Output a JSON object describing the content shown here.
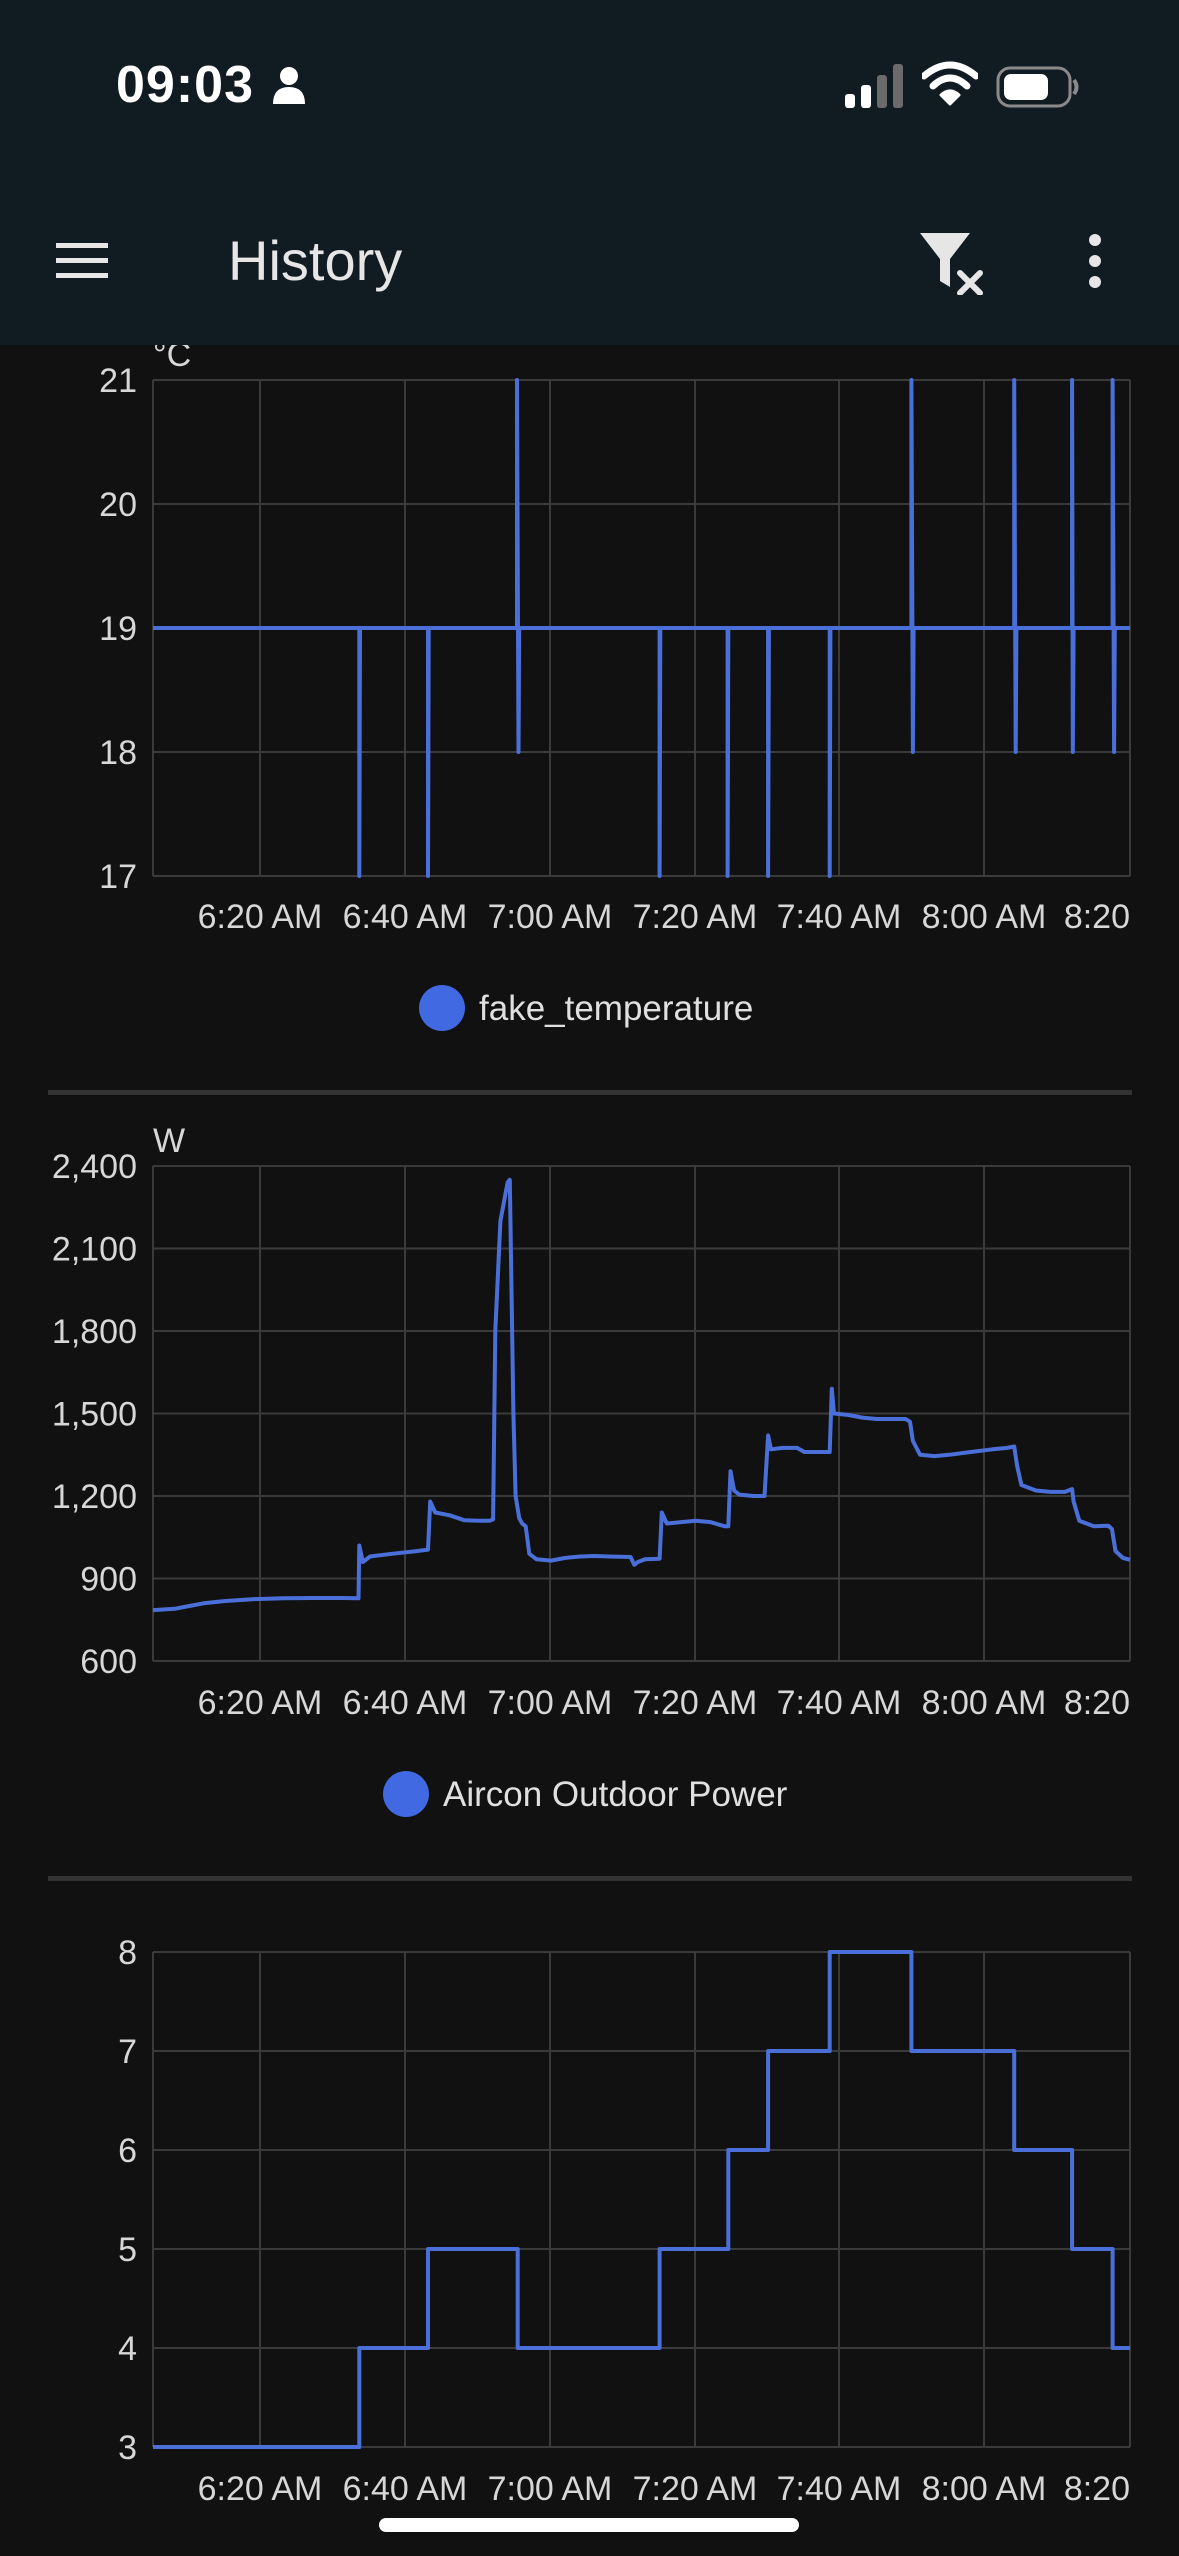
{
  "status_bar": {
    "time": "09:03",
    "icons": [
      "person-icon",
      "cellular-signal-icon",
      "wifi-icon",
      "battery-icon"
    ]
  },
  "app_bar": {
    "title": "History",
    "menu_icon": "hamburger-menu-icon",
    "filter_icon": "clear-filter-icon",
    "more_icon": "more-vert-icon"
  },
  "colors": {
    "line": "#4a6fd8",
    "legend_dot": "#4169e1",
    "grid": "#3a3a3a",
    "background": "#111111",
    "app_bar": "#111b22"
  },
  "chart_data": [
    {
      "type": "line",
      "step": true,
      "unit": "°C",
      "x_ticks": [
        "6:20 AM",
        "6:40 AM",
        "7:00 AM",
        "7:20 AM",
        "7:40 AM",
        "8:00 AM",
        "8:20"
      ],
      "y_ticks": [
        "17",
        "18",
        "19",
        "20",
        "21"
      ],
      "ylim": [
        17,
        21
      ],
      "xlim_min": [
        0,
        135
      ],
      "grid": true,
      "legend": "bottom-center",
      "series": [
        {
          "name": "fake_temperature",
          "points": [
            [
              0,
              19
            ],
            [
              28.5,
              19
            ],
            [
              28.5,
              17
            ],
            [
              28.6,
              19
            ],
            [
              38,
              19
            ],
            [
              38,
              17
            ],
            [
              38.1,
              19
            ],
            [
              50.3,
              19
            ],
            [
              50.3,
              21
            ],
            [
              50.5,
              18
            ],
            [
              50.6,
              19
            ],
            [
              70,
              19
            ],
            [
              70,
              17
            ],
            [
              70.1,
              19
            ],
            [
              79.4,
              19
            ],
            [
              79.4,
              17
            ],
            [
              79.5,
              19
            ],
            [
              85,
              19
            ],
            [
              85,
              17
            ],
            [
              85.1,
              19
            ],
            [
              93.5,
              19
            ],
            [
              93.5,
              17
            ],
            [
              93.6,
              19
            ],
            [
              104.8,
              19
            ],
            [
              104.8,
              21
            ],
            [
              105,
              18
            ],
            [
              105.1,
              19
            ],
            [
              119,
              19
            ],
            [
              119,
              21
            ],
            [
              119.2,
              18
            ],
            [
              119.3,
              19
            ],
            [
              127,
              19
            ],
            [
              127,
              21
            ],
            [
              127.1,
              18
            ],
            [
              127.2,
              19
            ],
            [
              132.6,
              19
            ],
            [
              132.6,
              21
            ],
            [
              132.8,
              18
            ],
            [
              132.9,
              19
            ],
            [
              135,
              19
            ]
          ]
        }
      ]
    },
    {
      "type": "line",
      "unit": "W",
      "x_ticks": [
        "6:20 AM",
        "6:40 AM",
        "7:00 AM",
        "7:20 AM",
        "7:40 AM",
        "8:00 AM",
        "8:20"
      ],
      "y_ticks": [
        "600",
        "900",
        "1,200",
        "1,500",
        "1,800",
        "2,100",
        "2,400"
      ],
      "ylim": [
        600,
        2400
      ],
      "xlim_min": [
        0,
        135
      ],
      "grid": true,
      "legend": "bottom-center",
      "series": [
        {
          "name": "Aircon Outdoor Power",
          "points": [
            [
              0,
              785
            ],
            [
              3,
              790
            ],
            [
              5,
              800
            ],
            [
              7,
              810
            ],
            [
              10,
              818
            ],
            [
              14,
              825
            ],
            [
              18,
              828
            ],
            [
              22,
              829
            ],
            [
              26,
              829
            ],
            [
              28.4,
              828
            ],
            [
              28.5,
              1020
            ],
            [
              29,
              960
            ],
            [
              30,
              980
            ],
            [
              33,
              990
            ],
            [
              36,
              998
            ],
            [
              38,
              1005
            ],
            [
              38.3,
              1180
            ],
            [
              39,
              1140
            ],
            [
              41,
              1130
            ],
            [
              43,
              1112
            ],
            [
              45,
              1110
            ],
            [
              46.5,
              1110
            ],
            [
              47,
              1115
            ],
            [
              47.3,
              1800
            ],
            [
              48,
              2200
            ],
            [
              49,
              2340
            ],
            [
              49.3,
              2350
            ],
            [
              49.8,
              1500
            ],
            [
              50.1,
              1200
            ],
            [
              50.6,
              1120
            ],
            [
              51,
              1100
            ],
            [
              51.5,
              1090
            ],
            [
              52,
              990
            ],
            [
              53,
              970
            ],
            [
              55,
              965
            ],
            [
              57,
              975
            ],
            [
              59,
              980
            ],
            [
              61,
              982
            ],
            [
              63,
              980
            ],
            [
              66,
              978
            ],
            [
              66.5,
              950
            ],
            [
              67,
              960
            ],
            [
              68,
              970
            ],
            [
              70,
              972
            ],
            [
              70.3,
              1140
            ],
            [
              71,
              1100
            ],
            [
              73,
              1105
            ],
            [
              75,
              1110
            ],
            [
              77,
              1105
            ],
            [
              79,
              1090
            ],
            [
              79.5,
              1090
            ],
            [
              79.8,
              1290
            ],
            [
              80.3,
              1220
            ],
            [
              81,
              1205
            ],
            [
              83,
              1200
            ],
            [
              84.5,
              1200
            ],
            [
              85,
              1420
            ],
            [
              85.4,
              1370
            ],
            [
              87,
              1375
            ],
            [
              89,
              1375
            ],
            [
              90,
              1360
            ],
            [
              92,
              1360
            ],
            [
              93.5,
              1360
            ],
            [
              93.8,
              1590
            ],
            [
              94.1,
              1500
            ],
            [
              96,
              1495
            ],
            [
              98,
              1485
            ],
            [
              100,
              1480
            ],
            [
              102,
              1480
            ],
            [
              104,
              1480
            ],
            [
              104.6,
              1470
            ],
            [
              105,
              1400
            ],
            [
              106,
              1350
            ],
            [
              108,
              1345
            ],
            [
              110,
              1350
            ],
            [
              113,
              1360
            ],
            [
              116,
              1370
            ],
            [
              118,
              1375
            ],
            [
              119,
              1380
            ],
            [
              119.4,
              1310
            ],
            [
              120,
              1240
            ],
            [
              122,
              1220
            ],
            [
              124,
              1215
            ],
            [
              126,
              1215
            ],
            [
              127,
              1225
            ],
            [
              127.2,
              1180
            ],
            [
              128,
              1110
            ],
            [
              130,
              1090
            ],
            [
              132,
              1092
            ],
            [
              132.5,
              1080
            ],
            [
              133,
              1000
            ],
            [
              134,
              975
            ],
            [
              135,
              968
            ]
          ]
        }
      ]
    },
    {
      "type": "line",
      "step": true,
      "x_ticks": [
        "6:20 AM",
        "6:40 AM",
        "7:00 AM",
        "7:20 AM",
        "7:40 AM",
        "8:00 AM",
        "8:20"
      ],
      "y_ticks": [
        "3",
        "4",
        "5",
        "6",
        "7",
        "8"
      ],
      "ylim": [
        3,
        8
      ],
      "xlim_min": [
        0,
        135
      ],
      "grid": true,
      "series": [
        {
          "points": [
            [
              0,
              3
            ],
            [
              28.5,
              3
            ],
            [
              28.5,
              4
            ],
            [
              38,
              4
            ],
            [
              38,
              5
            ],
            [
              50.4,
              5
            ],
            [
              50.4,
              4
            ],
            [
              70,
              4
            ],
            [
              70,
              5
            ],
            [
              79.5,
              5
            ],
            [
              79.5,
              6
            ],
            [
              85,
              6
            ],
            [
              85,
              7
            ],
            [
              93.5,
              7
            ],
            [
              93.5,
              8
            ],
            [
              104.8,
              8
            ],
            [
              104.8,
              7
            ],
            [
              119,
              7
            ],
            [
              119,
              6
            ],
            [
              127,
              6
            ],
            [
              127,
              5
            ],
            [
              132.6,
              5
            ],
            [
              132.6,
              4
            ],
            [
              135,
              4
            ]
          ]
        }
      ]
    }
  ]
}
